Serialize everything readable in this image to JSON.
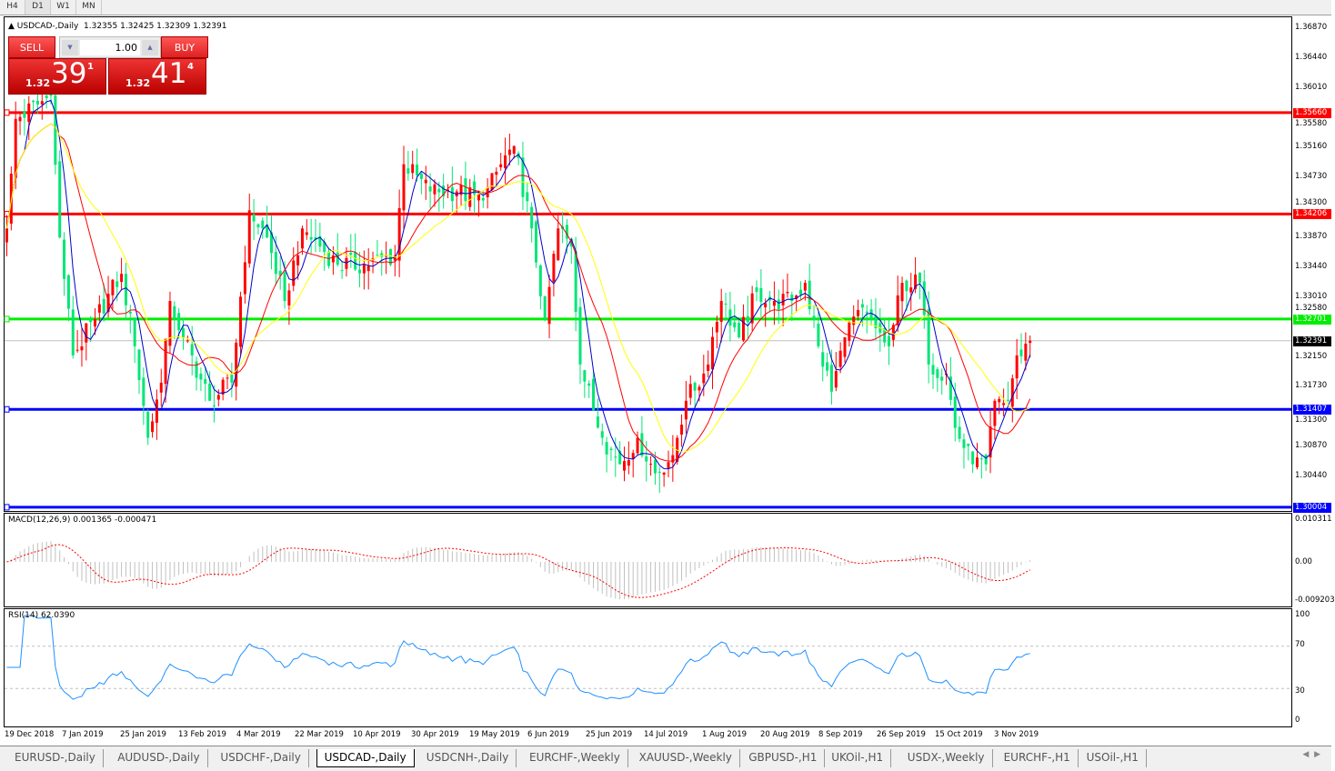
{
  "timeframes": [
    "H4",
    "D1",
    "W1",
    "MN"
  ],
  "active_timeframe": "D1",
  "chart": {
    "title": "USDCAD-,Daily  1.32355 1.32425 1.32309 1.32391",
    "symbol": "USDCAD-,Daily",
    "ohlc": "1.32355 1.32425 1.32309 1.32391"
  },
  "trade_panel": {
    "sell_label": "SELL",
    "buy_label": "BUY",
    "lot": "1.00",
    "sell": {
      "small": "1.32",
      "big": "39",
      "tiny": "1"
    },
    "buy": {
      "small": "1.32",
      "big": "41",
      "tiny": "4"
    }
  },
  "price_axis": [
    "1.36870",
    "1.36440",
    "1.36010",
    "1.35580",
    "1.35160",
    "1.34730",
    "1.34300",
    "1.33870",
    "1.33440",
    "1.33010",
    "1.32580",
    "1.32150",
    "1.31730",
    "1.31300",
    "1.30870",
    "1.30440"
  ],
  "levels": [
    {
      "price": "1.35660",
      "color": "#ff0000"
    },
    {
      "price": "1.34206",
      "color": "#ff0000"
    },
    {
      "price": "1.32701",
      "color": "#00ee00"
    },
    {
      "price": "1.31407",
      "color": "#0000ff"
    },
    {
      "price": "1.30004",
      "color": "#0000ff"
    }
  ],
  "current_price": "1.32391",
  "macd": {
    "title": "MACD(12,26,9) 0.001365 -0.000471",
    "axis": [
      "0.010311",
      "0.00",
      "-0.009203"
    ]
  },
  "rsi": {
    "title": "RSI(14) 62.0390",
    "axis": [
      "100",
      "70",
      "30",
      "0"
    ],
    "value": 62.039
  },
  "dates": [
    "19 Dec 2018",
    "7 Jan 2019",
    "25 Jan 2019",
    "13 Feb 2019",
    "4 Mar 2019",
    "22 Mar 2019",
    "10 Apr 2019",
    "30 Apr 2019",
    "19 May 2019",
    "6 Jun 2019",
    "25 Jun 2019",
    "14 Jul 2019",
    "1 Aug 2019",
    "20 Aug 2019",
    "8 Sep 2019",
    "26 Sep 2019",
    "15 Oct 2019",
    "3 Nov 2019"
  ],
  "tabs": [
    {
      "label": "EURUSD-,Daily"
    },
    {
      "label": "AUDUSD-,Daily"
    },
    {
      "label": "USDCHF-,Daily"
    },
    {
      "label": "USDCAD-,Daily",
      "active": true
    },
    {
      "label": "USDCNH-,Daily"
    },
    {
      "label": "EURCHF-,Weekly"
    },
    {
      "label": "XAUUSD-,Weekly"
    },
    {
      "label": "GBPUSD-,H1"
    },
    {
      "label": "UKOil-,H1"
    },
    {
      "label": "USDX-,Weekly"
    },
    {
      "label": "EURCHF-,H1"
    },
    {
      "label": "USOil-,H1"
    }
  ],
  "chart_data": {
    "type": "candlestick",
    "bull_color": "#ff0000",
    "bear_color": "#00e676",
    "ma_colors": [
      "#0000cc",
      "#ff0000",
      "#ffff00"
    ],
    "ylim": [
      1.2995,
      1.371
    ],
    "close_keyframes": [
      [
        0,
        1.34
      ],
      [
        2,
        1.3557
      ],
      [
        10,
        1.359
      ],
      [
        12,
        1.3387
      ],
      [
        15,
        1.3218
      ],
      [
        20,
        1.327
      ],
      [
        26,
        1.3335
      ],
      [
        29,
        1.3231
      ],
      [
        32,
        1.31
      ],
      [
        35,
        1.3179
      ],
      [
        37,
        1.3296
      ],
      [
        40,
        1.3244
      ],
      [
        46,
        1.3153
      ],
      [
        51,
        1.3179
      ],
      [
        55,
        1.3426
      ],
      [
        59,
        1.3387
      ],
      [
        63,
        1.3296
      ],
      [
        67,
        1.34
      ],
      [
        71,
        1.3374
      ],
      [
        75,
        1.3348
      ],
      [
        81,
        1.3348
      ],
      [
        88,
        1.3361
      ],
      [
        90,
        1.3492
      ],
      [
        96,
        1.3453
      ],
      [
        102,
        1.3453
      ],
      [
        108,
        1.344
      ],
      [
        112,
        1.3492
      ],
      [
        115,
        1.3518
      ],
      [
        119,
        1.34
      ],
      [
        122,
        1.327
      ],
      [
        125,
        1.34
      ],
      [
        128,
        1.3374
      ],
      [
        130,
        1.3205
      ],
      [
        135,
        1.31
      ],
      [
        139,
        1.3062
      ],
      [
        143,
        1.31
      ],
      [
        147,
        1.3049
      ],
      [
        151,
        1.3075
      ],
      [
        154,
        1.3153
      ],
      [
        158,
        1.3192
      ],
      [
        162,
        1.3296
      ],
      [
        166,
        1.3244
      ],
      [
        170,
        1.3309
      ],
      [
        174,
        1.3296
      ],
      [
        178,
        1.3296
      ],
      [
        181,
        1.3322
      ],
      [
        184,
        1.3231
      ],
      [
        187,
        1.3166
      ],
      [
        190,
        1.3244
      ],
      [
        193,
        1.3283
      ],
      [
        197,
        1.3257
      ],
      [
        200,
        1.3231
      ],
      [
        203,
        1.3322
      ],
      [
        207,
        1.3322
      ],
      [
        209,
        1.3205
      ],
      [
        213,
        1.3192
      ],
      [
        215,
        1.3114
      ],
      [
        219,
        1.3062
      ],
      [
        222,
        1.3062
      ],
      [
        224,
        1.3153
      ],
      [
        227,
        1.3153
      ],
      [
        229,
        1.3218
      ],
      [
        232,
        1.32391
      ]
    ]
  }
}
